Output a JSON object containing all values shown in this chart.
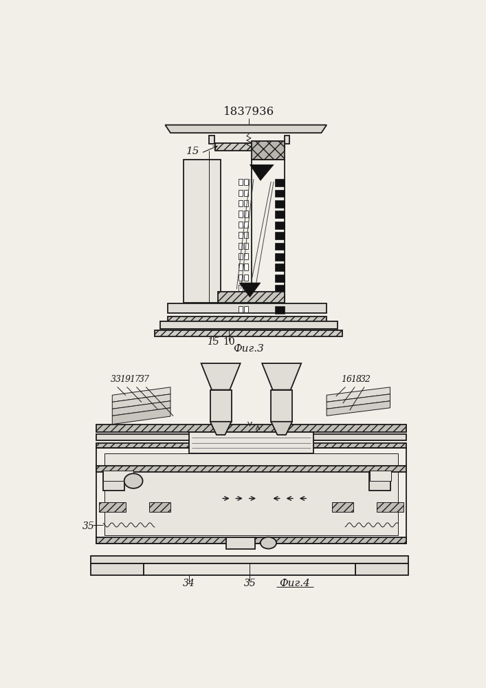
{
  "title": "1837936",
  "fig3_label": "Фиг.3",
  "fig4_label": "Фиг.4",
  "bg_color": "#f2efe9",
  "line_color": "#1a1a1a",
  "label_15_top": "15",
  "label_15_bottom": "15",
  "label_10": "10",
  "label_35_left": "35",
  "label_35_bottom": "35",
  "label_34": "34",
  "fig3_labels_left": [
    "33",
    "19",
    "17",
    "37"
  ],
  "fig3_labels_right": [
    "16",
    "18",
    "32"
  ]
}
